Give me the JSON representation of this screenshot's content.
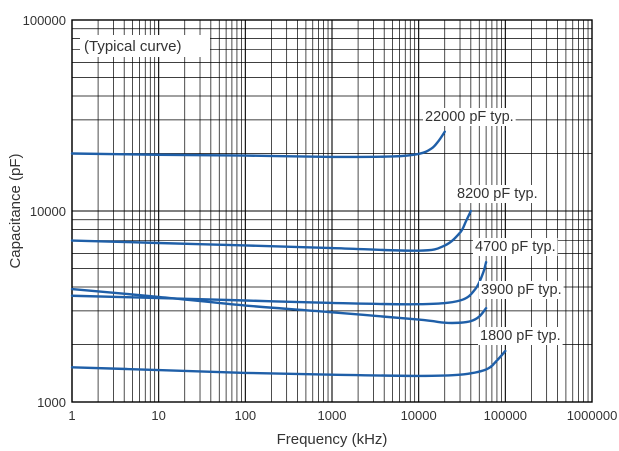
{
  "chart_data": {
    "type": "line",
    "x_scale": "log",
    "y_scale": "log",
    "xlim": [
      1,
      1000000
    ],
    "ylim": [
      1000,
      100000
    ],
    "grid": true,
    "xlabel": "Frequency (kHz)",
    "ylabel": "Capacitance (pF)",
    "annotation": "(Typical curve)",
    "x_ticks": [
      "1",
      "10",
      "100",
      "1000",
      "10000",
      "100000",
      "1000000"
    ],
    "y_ticks": [
      "1000",
      "10000",
      "100000"
    ],
    "series_color": "#1f5fa8",
    "series": [
      {
        "name": "22000 pF typ.",
        "x": [
          1,
          10,
          100,
          1000,
          5000,
          10000,
          14000,
          17000,
          20000
        ],
        "y": [
          20000,
          19700,
          19500,
          19200,
          19300,
          19900,
          21200,
          23300,
          26000
        ]
      },
      {
        "name": "8200 pF typ.",
        "x": [
          1,
          10,
          100,
          1000,
          10000,
          20000,
          30000,
          35000,
          40000
        ],
        "y": [
          7000,
          6800,
          6600,
          6400,
          6200,
          6600,
          7700,
          8800,
          10000
        ]
      },
      {
        "name": "4700 pF typ.",
        "x": [
          1,
          10,
          100,
          1000,
          10000,
          30000,
          45000,
          55000,
          60000
        ],
        "y": [
          3600,
          3500,
          3400,
          3300,
          3250,
          3400,
          3900,
          4700,
          5400
        ]
      },
      {
        "name": "3900 pF typ.",
        "x": [
          1,
          10,
          100,
          1000,
          10000,
          20000,
          30000,
          40000,
          50000,
          60000
        ],
        "y": [
          3900,
          3550,
          3200,
          2950,
          2700,
          2600,
          2600,
          2650,
          2800,
          3100
        ]
      },
      {
        "name": "1800 pF typ.",
        "x": [
          1,
          10,
          100,
          1000,
          10000,
          30000,
          60000,
          80000,
          100000
        ],
        "y": [
          1520,
          1470,
          1420,
          1390,
          1370,
          1390,
          1480,
          1650,
          1850
        ]
      }
    ]
  }
}
